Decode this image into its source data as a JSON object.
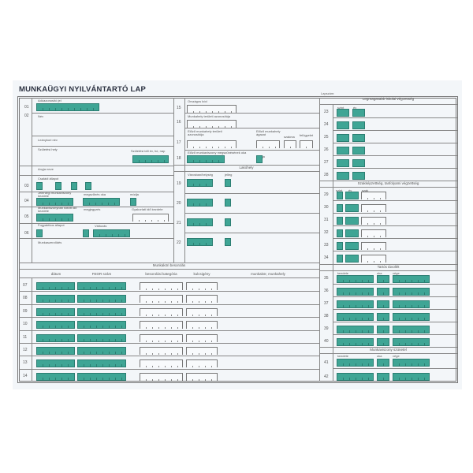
{
  "title": "MUNKAÜGYI NYILVÁNTARTÓ LAP",
  "sheet_number_label": "Lapszám:",
  "colors": {
    "field_fill": "#3fa595",
    "field_border": "#2c7e72",
    "line": "#888888"
  },
  "left": {
    "r01": {
      "num": "01",
      "label": "Adóazonosító jel"
    },
    "r02": {
      "num": "02",
      "label": "Név"
    },
    "maiden_name": "Leánykori név",
    "birth_place": "Születési hely",
    "birth_date": "Születési idő év, hó, nap",
    "mother_name": "Anyja neve",
    "r03": {
      "num": "03",
      "label": "Családi állapot"
    },
    "r04": {
      "num": "04",
      "label": "Jelenlegi munkaviszony kezdete",
      "label2": "megszűnés oka",
      "label3": "módja"
    },
    "r05": {
      "num": "05",
      "label": "Munkaviszonyban töltött idő kezdete",
      "label2": "megjegyzés",
      "label3": "Gyakorlati idő kezdete"
    },
    "r06": {
      "num": "06",
      "label": "Fogyatékos állapot",
      "label2": "Változás"
    },
    "contract": "Munkaszerződés"
  },
  "middle": {
    "r15": {
      "num": "15",
      "label": "Országos kód"
    },
    "r16": {
      "num": "16",
      "label": "Munkahely területi azonosítója"
    },
    "r17": {
      "num": "17",
      "label": "Előző munkahely területi azonosítója",
      "label2": "Előző munkahely ágazat",
      "label3": "szakma",
      "label4": "felügyelet"
    },
    "r18": {
      "num": "18",
      "label": "Előző munkaviszony megszűnésének oka",
      "label2": "módja"
    },
    "residence_header": "Lakóhely",
    "residence_col1": "Városban/helység",
    "residence_col2": "jelleg",
    "residence_rows": [
      "19",
      "20",
      "21",
      "22"
    ]
  },
  "right": {
    "education_header": "Legmagasabb iskolai végzettség",
    "education_cols": [
      "szint",
      "év"
    ],
    "education_rows": [
      "23",
      "24",
      "25",
      "26",
      "27",
      "28"
    ],
    "qualification_header": "Szakképzettség, tanfolyami végzettség",
    "qualification_cols": [
      "szint",
      "év",
      "szak"
    ],
    "qualification_rows": [
      "29",
      "30",
      "31",
      "32",
      "33",
      "34"
    ],
    "absence_header": "Tartós távollét",
    "absence_cols": [
      "kezdete",
      "oka",
      "vége"
    ],
    "absence_rows": [
      "35",
      "36",
      "37",
      "38",
      "39",
      "40"
    ],
    "suspension_header": "Munkaviszony szünetel",
    "suspension_cols": [
      "kezdete",
      "oka",
      "vége"
    ],
    "suspension_rows": [
      "41",
      "42"
    ]
  },
  "classification": {
    "header": "Munkaköri besorolás",
    "columns": [
      "dátum",
      "FEOR szám",
      "besorolási kategória",
      "kulcsigény",
      "munkakör, munkahely"
    ],
    "rows": [
      "07",
      "08",
      "09",
      "10",
      "11",
      "12",
      "13",
      "14"
    ]
  }
}
